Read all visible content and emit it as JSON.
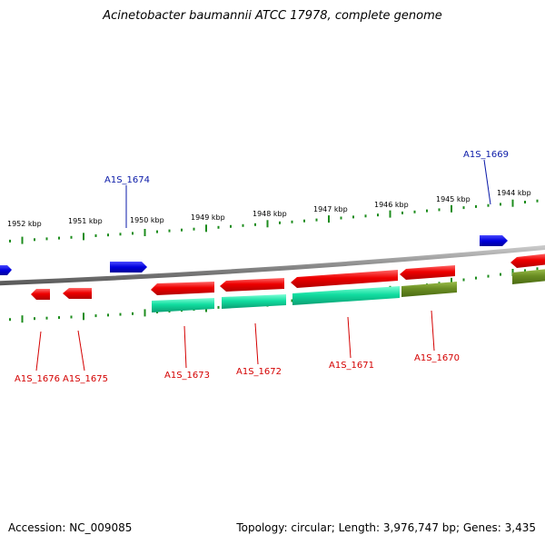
{
  "title": "Acinetobacter baumannii ATCC 17978, complete genome",
  "footer": {
    "accession": "Accession: NC_009085",
    "summary": "Topology: circular; Length: 3,976,747 bp; Genes: 3,435"
  },
  "colors": {
    "gene_red": "#ee0000",
    "gene_blue": "#0000dd",
    "cds_green": "#11dda0",
    "cds_olive": "#6b8e23",
    "backbone": "#8c8c8c",
    "ticks": "#1c8c1c",
    "label_red": "#d40000",
    "label_blue": "#0a1aa8"
  },
  "scale_labels": [
    "1952 kbp",
    "1951 kbp",
    "1950 kbp",
    "1949 kbp",
    "1948 kbp",
    "1947 kbp",
    "1946 kbp",
    "1945 kbp",
    "1944 kbp"
  ],
  "gene_labels": {
    "a1s_1674": "A1S_1674",
    "a1s_1669": "A1S_1669",
    "a1s_1676": "A1S_1676",
    "a1s_1675": "A1S_1675",
    "a1s_1673": "A1S_1673",
    "a1s_1672": "A1S_1672",
    "a1s_1671": "A1S_1671",
    "a1s_1670": "A1S_1670"
  }
}
